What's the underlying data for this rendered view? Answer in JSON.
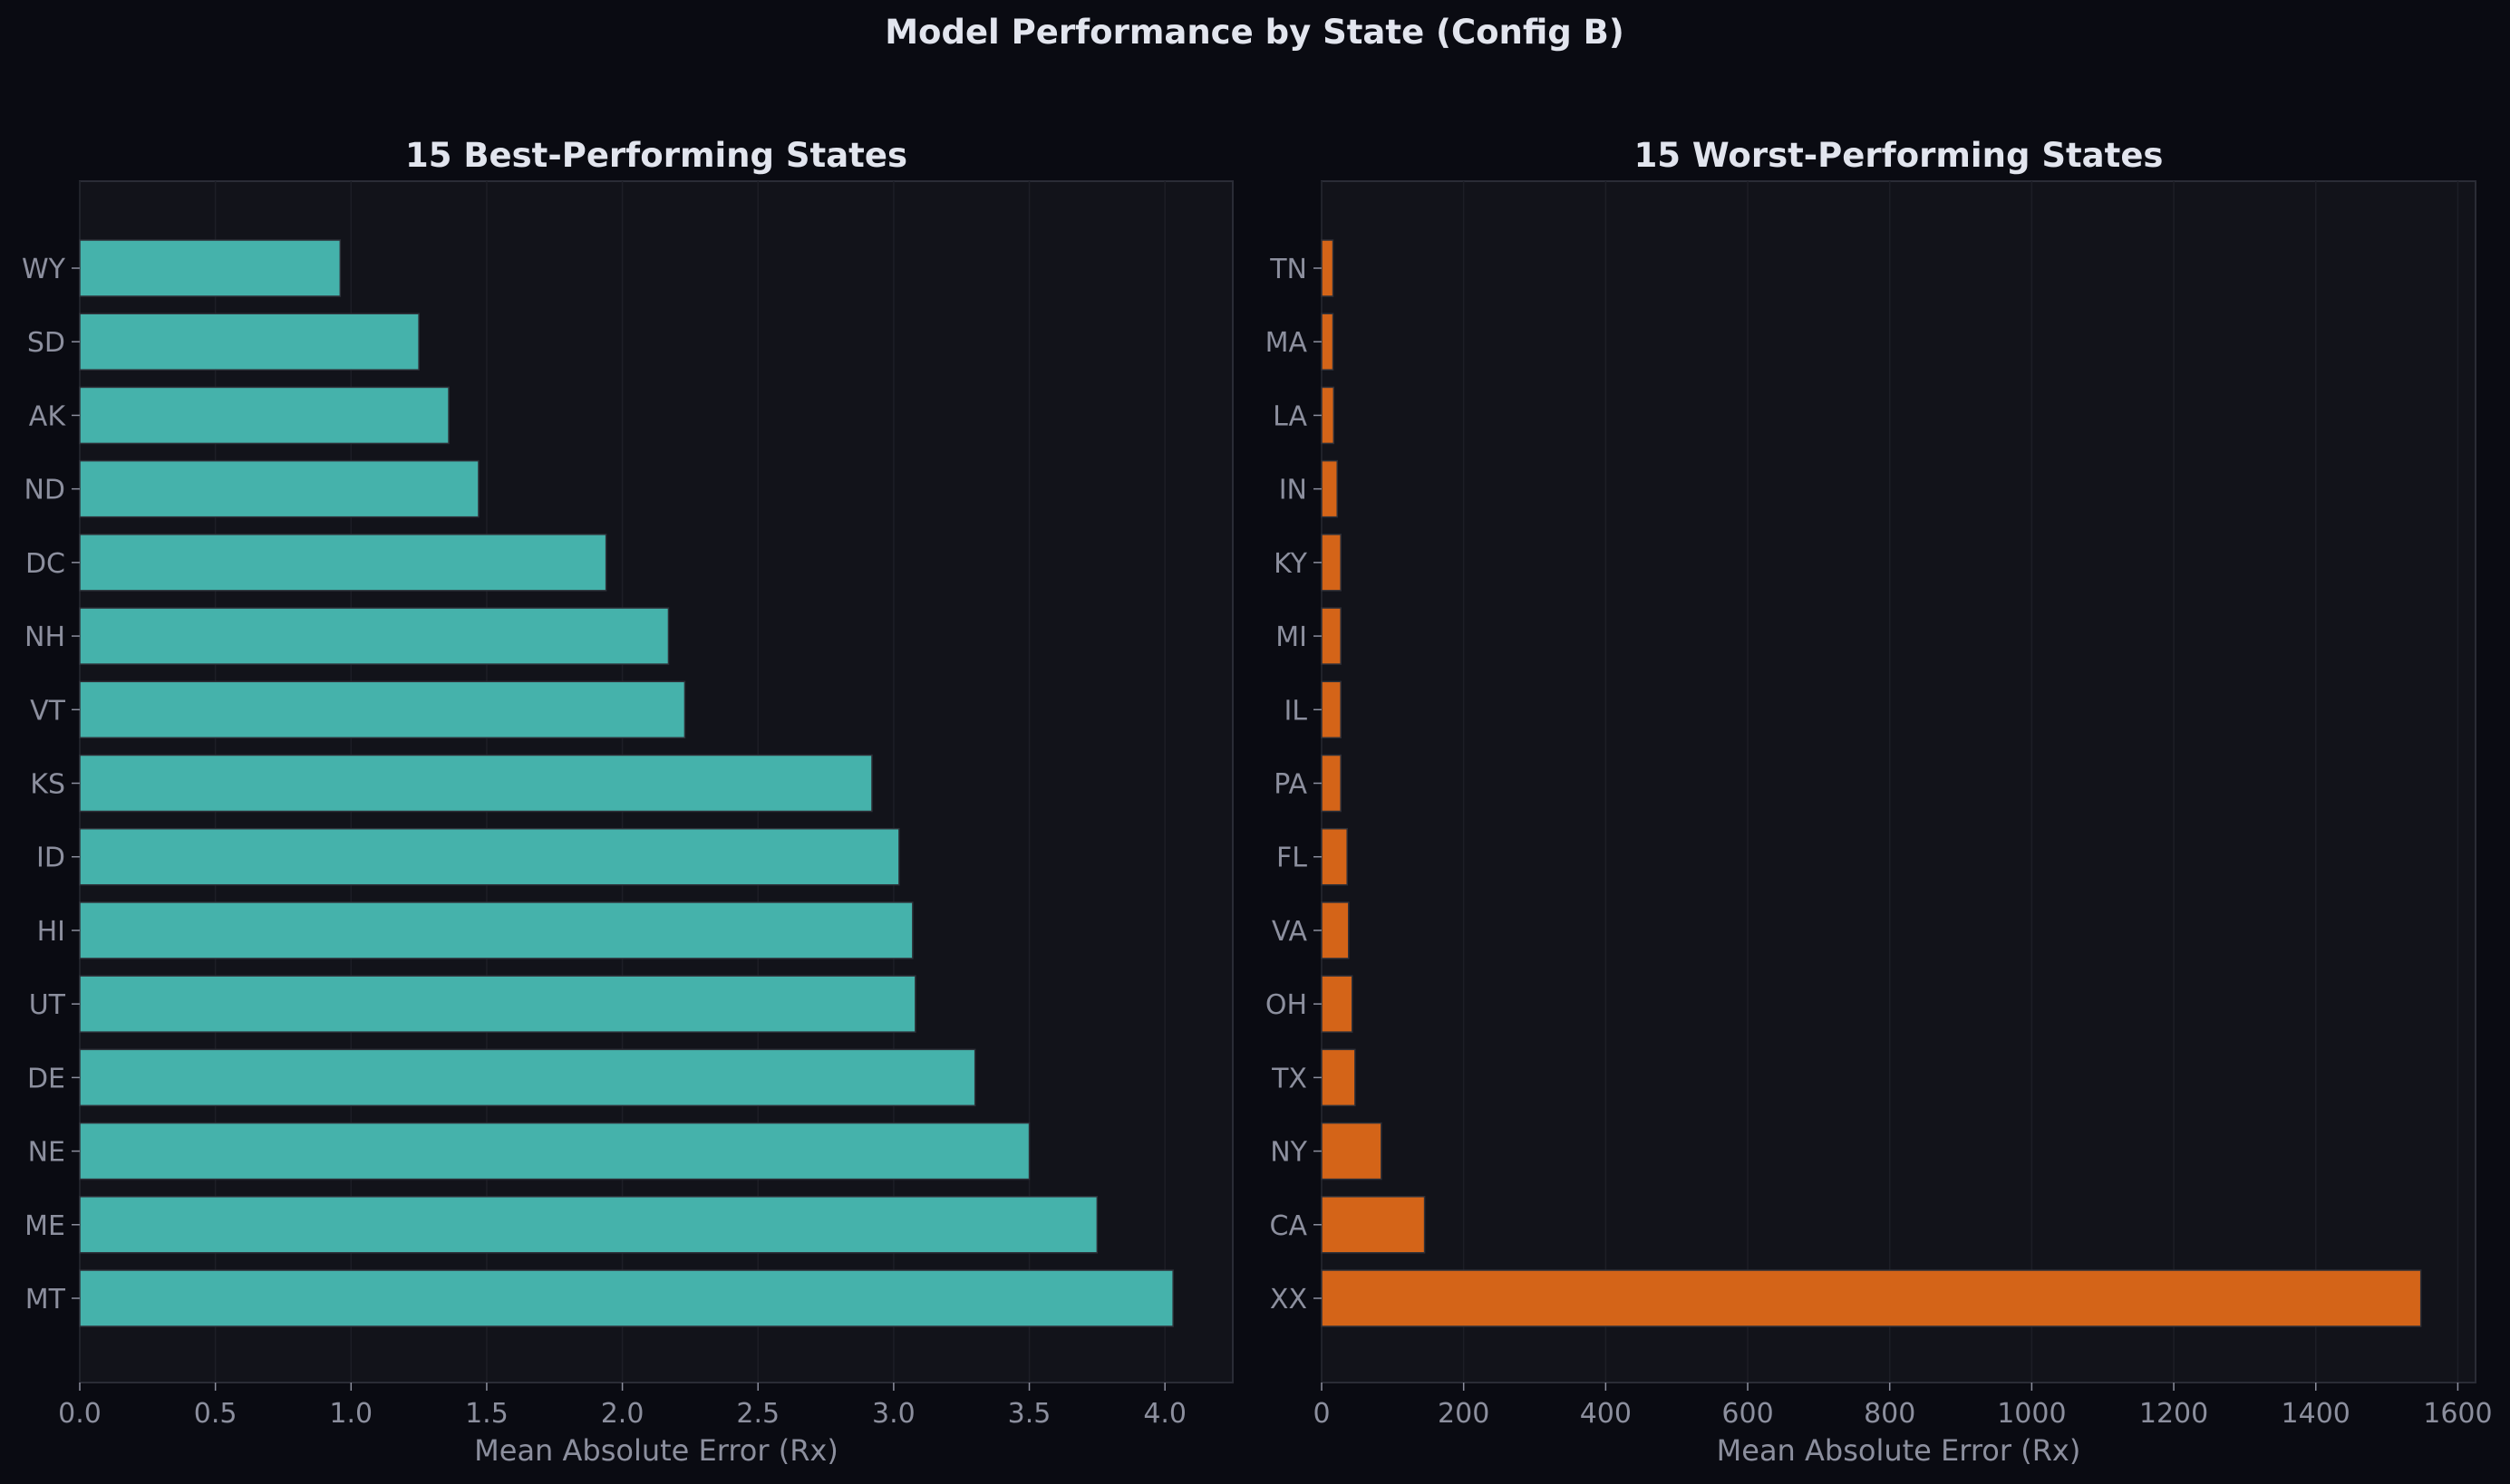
{
  "figure_title": "Model Performance by State (Config B)",
  "colors": {
    "background": "#0a0b12",
    "axes_background": "#12131a",
    "best_bar": "#45b2ab",
    "worst_bar": "#d46418",
    "text": "#e2e5ee",
    "tick_text": "#8c8f9e",
    "grid": "#1d1e26",
    "spine": "#2a2c36"
  },
  "chart_data": [
    {
      "type": "bar",
      "orientation": "horizontal",
      "title": "15 Best-Performing States",
      "xlabel": "Mean Absolute Error (Rx)",
      "ylabel": "",
      "xlim": [
        0,
        4.25
      ],
      "xticks": [
        0,
        0.5,
        1,
        1.5,
        2,
        2.5,
        3,
        3.5,
        4
      ],
      "xtick_labels": [
        "0.0",
        "0.5",
        "1.0",
        "1.5",
        "2.0",
        "2.5",
        "3.0",
        "3.5",
        "4.0"
      ],
      "grid": true,
      "categories": [
        "WY",
        "SD",
        "AK",
        "ND",
        "DC",
        "NH",
        "VT",
        "KS",
        "ID",
        "HI",
        "UT",
        "DE",
        "NE",
        "ME",
        "MT"
      ],
      "values": [
        0.96,
        1.25,
        1.36,
        1.47,
        1.94,
        2.17,
        2.23,
        2.92,
        3.02,
        3.07,
        3.08,
        3.3,
        3.5,
        3.75,
        4.03
      ]
    },
    {
      "type": "bar",
      "orientation": "horizontal",
      "title": "15 Worst-Performing States",
      "xlabel": "Mean Absolute Error (Rx)",
      "ylabel": "",
      "xlim": [
        0,
        1625
      ],
      "xticks": [
        0,
        200,
        400,
        600,
        800,
        1000,
        1200,
        1400,
        1600
      ],
      "xtick_labels": [
        "0",
        "200",
        "400",
        "600",
        "800",
        "1000",
        "1200",
        "1400",
        "1600"
      ],
      "grid": true,
      "categories": [
        "TN",
        "MA",
        "LA",
        "IN",
        "KY",
        "MI",
        "IL",
        "PA",
        "FL",
        "VA",
        "OH",
        "TX",
        "NY",
        "CA",
        "XX"
      ],
      "values": [
        16,
        16,
        17,
        22,
        27,
        27,
        27,
        27,
        36,
        38,
        43,
        47,
        84,
        145,
        1548
      ]
    }
  ]
}
